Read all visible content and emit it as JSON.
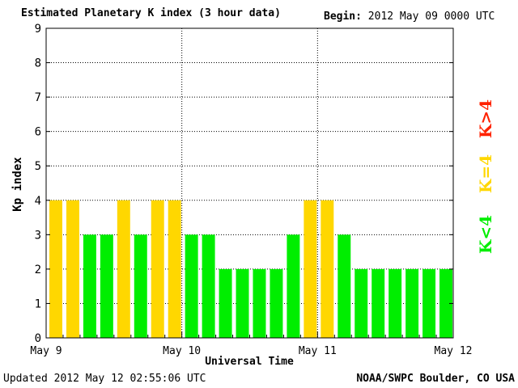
{
  "header": {
    "title": "Estimated Planetary K index (3 hour data)",
    "begin_label": "Begin:",
    "begin_value": "2012 May 09 0000 UTC"
  },
  "footer": {
    "updated_label": "Updated",
    "updated_value": "2012 May 12 02:55:06 UTC",
    "source": "NOAA/SWPC Boulder, CO USA"
  },
  "legend": [
    {
      "label": "K<4",
      "color": "#00ee00"
    },
    {
      "label": "K=4",
      "color": "#ffd700"
    },
    {
      "label": "K>4",
      "color": "#ff2200"
    }
  ],
  "chart_data": {
    "type": "bar",
    "title": "Estimated Planetary K index (3 hour data)",
    "xlabel": "Universal Time",
    "ylabel": "Kp index",
    "ylim": [
      0,
      9
    ],
    "yticks": [
      "0",
      "1",
      "2",
      "3",
      "4",
      "5",
      "6",
      "7",
      "8",
      "9"
    ],
    "xticks": [
      "May 9",
      "May 10",
      "May 11",
      "May 12"
    ],
    "grid": true,
    "values": [
      4,
      4,
      3,
      3,
      4,
      3,
      4,
      4,
      3,
      3,
      2,
      2,
      2,
      2,
      3,
      4,
      4,
      3,
      2,
      2,
      2,
      2,
      2,
      2
    ],
    "colors": {
      "below": "#00ee00",
      "equal": "#ffd700",
      "above": "#ff2200"
    }
  }
}
